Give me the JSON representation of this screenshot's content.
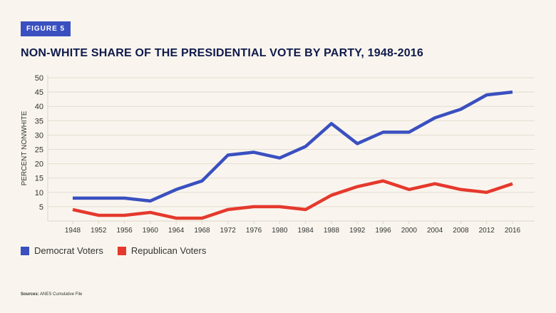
{
  "figure_label": "FIGURE 5",
  "chart_data": {
    "type": "line",
    "title": "NON-WHITE SHARE OF THE PRESIDENTIAL VOTE BY PARTY, 1948-2016",
    "ylabel": "PERCENT NONWHITE",
    "xlabel": "",
    "ylim": [
      0,
      50
    ],
    "yticks": [
      5,
      10,
      15,
      20,
      25,
      30,
      35,
      40,
      45,
      50
    ],
    "grid": true,
    "legend_placement": "bottom-left",
    "x": [
      1948,
      1952,
      1956,
      1960,
      1964,
      1968,
      1972,
      1976,
      1980,
      1984,
      1988,
      1992,
      1996,
      2000,
      2004,
      2008,
      2012,
      2016
    ],
    "series": [
      {
        "name": "Democrat Voters",
        "color": "#3a50c0",
        "values": [
          8,
          8,
          8,
          7,
          11,
          14,
          23,
          24,
          22,
          26,
          34,
          27,
          31,
          31,
          36,
          39,
          44,
          45
        ]
      },
      {
        "name": "Republican Voters",
        "color": "#e5392d",
        "values": [
          4,
          2,
          2,
          3,
          1,
          1,
          4,
          5,
          5,
          4,
          9,
          12,
          14,
          11,
          13,
          11,
          10,
          13
        ]
      }
    ]
  },
  "source": {
    "label": "Sources:",
    "text": "ANES Cumulative File"
  }
}
